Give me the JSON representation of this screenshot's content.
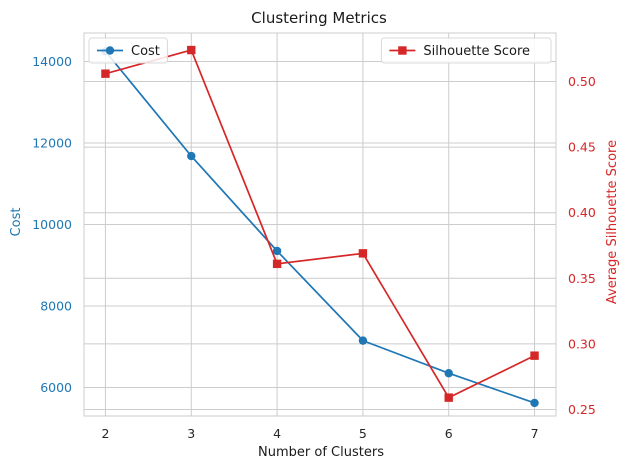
{
  "chart_data": {
    "type": "line",
    "title": "Clustering Metrics",
    "xlabel": "Number of Clusters",
    "x": [
      2,
      3,
      4,
      5,
      6,
      7
    ],
    "xlim": [
      1.75,
      7.25
    ],
    "x_ticks": [
      2,
      3,
      4,
      5,
      6,
      7
    ],
    "grid": true,
    "axes": {
      "left": {
        "label": "Cost",
        "color": "#1f77b4",
        "ylim": [
          5300,
          14700
        ],
        "ticks": [
          6000,
          8000,
          10000,
          12000,
          14000
        ]
      },
      "right": {
        "label": "Average Silhouette Score",
        "color": "#d62728",
        "ylim": [
          0.245,
          0.537
        ],
        "ticks": [
          "0.25",
          "0.30",
          "0.35",
          "0.40",
          "0.45",
          "0.50"
        ]
      }
    },
    "series": [
      {
        "name": "Cost",
        "axis": "left",
        "color": "#1f77b4",
        "marker": "circle",
        "legend_position": "top-left",
        "values": [
          14250,
          11680,
          9350,
          7150,
          6350,
          5620
        ]
      },
      {
        "name": "Silhouette Score",
        "axis": "right",
        "color": "#d62728",
        "marker": "square",
        "legend_position": "top-right",
        "values": [
          0.506,
          0.524,
          0.361,
          0.369,
          0.259,
          0.291
        ]
      }
    ]
  }
}
